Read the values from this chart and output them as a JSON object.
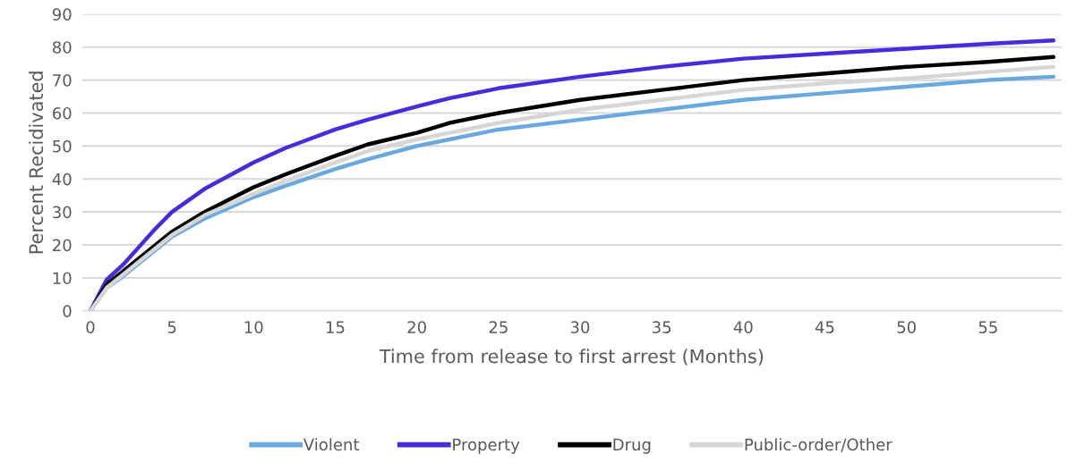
{
  "chart_data": {
    "type": "line",
    "xlabel": "Time from release to first arrest (Months)",
    "ylabel": "Percent Recidivated",
    "x": [
      0,
      1,
      2,
      3,
      4,
      5,
      7,
      10,
      12,
      15,
      17,
      20,
      22,
      25,
      30,
      35,
      40,
      45,
      50,
      55,
      59
    ],
    "series": [
      {
        "name": "Violent",
        "color": "#69a9dd",
        "values": [
          0,
          7,
          10.5,
          14.5,
          18.5,
          22.5,
          28,
          34.5,
          38,
          43,
          46,
          50,
          52,
          55,
          58,
          61,
          64,
          66,
          68,
          70,
          71
        ]
      },
      {
        "name": "Property",
        "color": "#4a2bdc",
        "values": [
          0,
          9.5,
          14,
          19.5,
          25,
          30,
          37,
          45,
          49.5,
          55,
          58,
          62,
          64.5,
          67.5,
          71,
          74,
          76.5,
          78,
          79.5,
          81,
          82
        ]
      },
      {
        "name": "Drug",
        "color": "#000000",
        "values": [
          0,
          8,
          12,
          16,
          20,
          24,
          30,
          37.5,
          41.5,
          47,
          50.5,
          54,
          57,
          60,
          64,
          67,
          70,
          72,
          74,
          75.5,
          77
        ]
      },
      {
        "name": "Public-order/Other",
        "color": "#d6d6d6",
        "values": [
          0,
          7,
          11,
          15,
          19,
          23,
          29,
          35.5,
          39.5,
          45,
          48.5,
          52,
          54,
          57,
          61,
          64,
          67,
          69,
          70.5,
          72.5,
          74
        ]
      }
    ],
    "xlim": [
      -0.5,
      59.5
    ],
    "xticks": [
      0,
      5,
      10,
      15,
      20,
      25,
      30,
      35,
      40,
      45,
      50,
      55
    ],
    "ylim": [
      0,
      90
    ],
    "yticks": [
      0,
      10,
      20,
      30,
      40,
      50,
      60,
      70,
      80,
      90
    ],
    "grid": "y",
    "legend": "bottom",
    "marker": "none",
    "line_style": "solid"
  }
}
